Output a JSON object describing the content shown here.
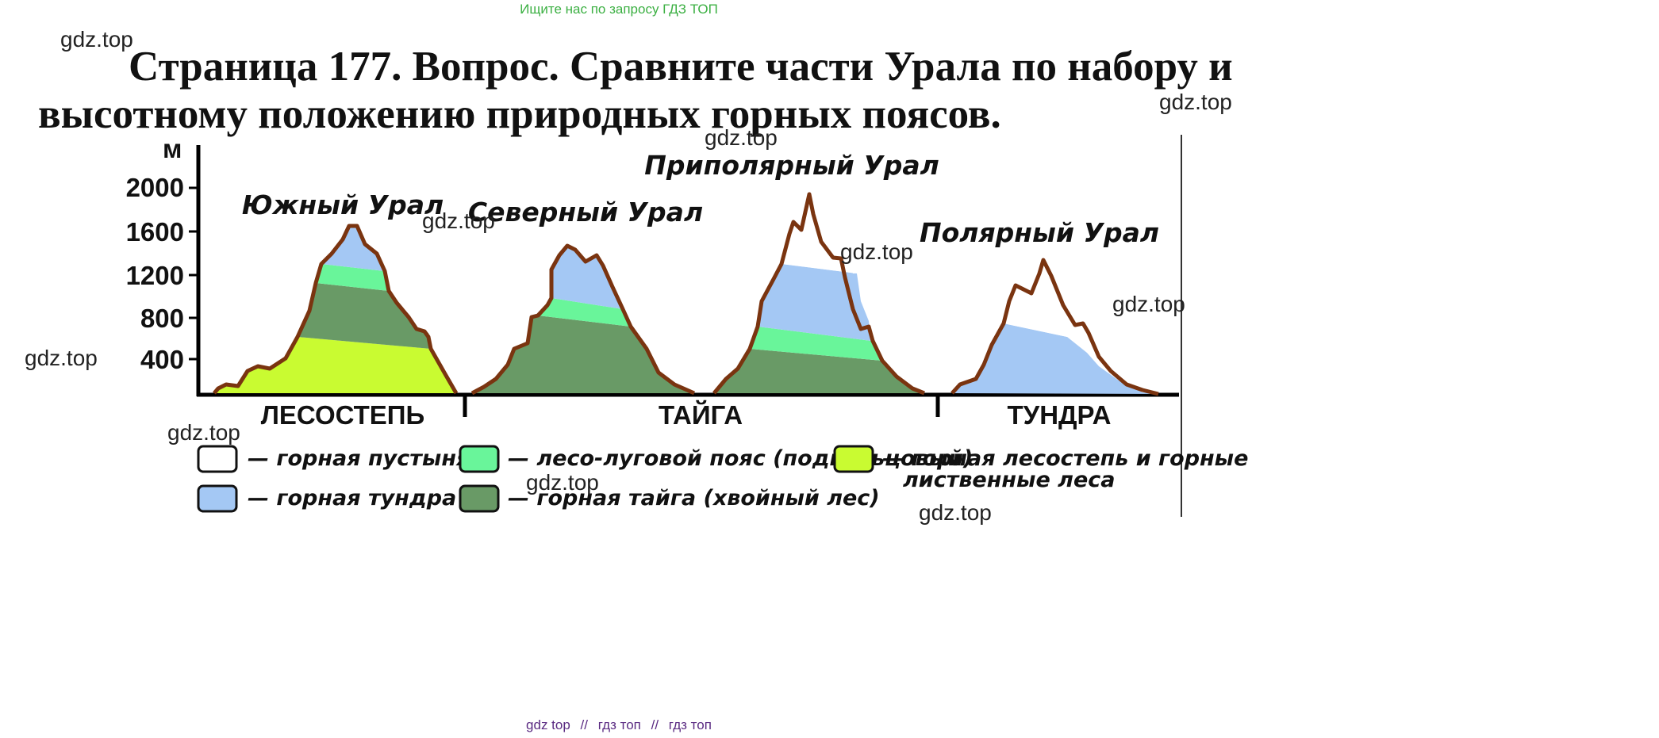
{
  "header": {
    "search_hint": "Ищите нас по запросу ГДЗ ТОП",
    "title_line1": "Страница 177. Вопрос. Сравните части Урала по набору и",
    "title_line2": "высотному положению природных горных поясов."
  },
  "watermark": "gdz.top",
  "diagram": {
    "y_unit": "м",
    "y_ticks": [
      "2000",
      "1600",
      "1200",
      "800",
      "400"
    ],
    "zones": [
      "ЛЕСОСТЕПЬ",
      "ТАЙГА",
      "ТУНДРА"
    ],
    "regions": [
      "Южный Урал",
      "Северный Урал",
      "Приполярный Урал",
      "Полярный Урал"
    ],
    "colors": {
      "desert": "#ffffff",
      "tundra": "#a4c8f4",
      "meadow": "#69f59a",
      "taiga": "#699a66",
      "steppe": "#c9fb31",
      "outline": "#7a3410"
    }
  },
  "legend": [
    {
      "key": "desert",
      "label": "— горная пустыня"
    },
    {
      "key": "tundra",
      "label": "— горная тундра"
    },
    {
      "key": "meadow",
      "label": "— лесо-луговой пояс (подгольцовый)"
    },
    {
      "key": "taiga",
      "label": "— горная тайга (хвойный лес)"
    },
    {
      "key": "steppe",
      "label_line1": "— горная лесостепь и горные",
      "label_line2": "лиственные леса"
    }
  ],
  "footer": {
    "link1": "gdz top",
    "sep": "//",
    "link2": "гдз топ",
    "link3": "гдз топ"
  }
}
